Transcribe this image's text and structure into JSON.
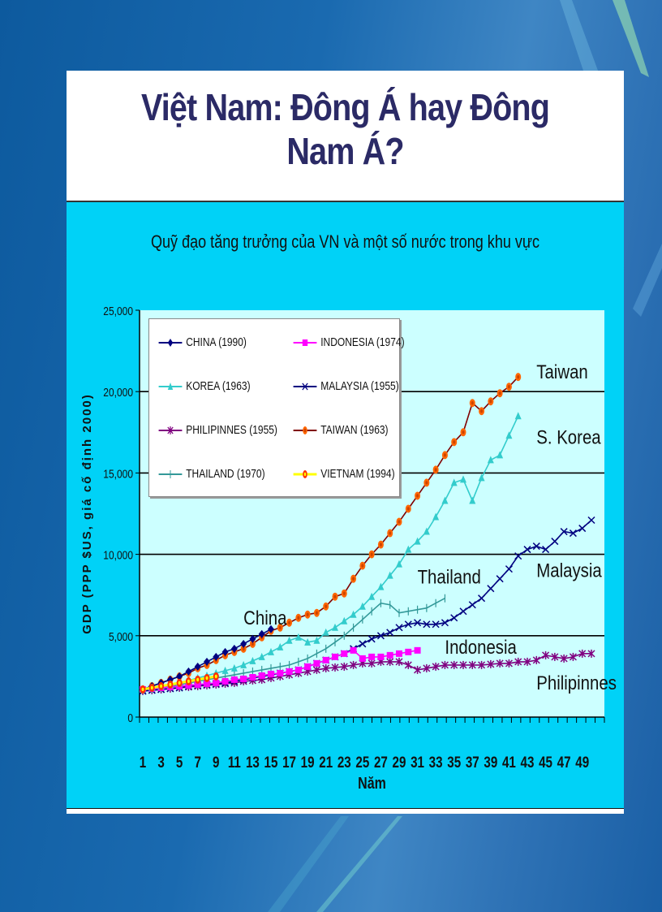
{
  "slide": {
    "title": "Việt Nam: Đông Á hay Đông Nam Á?",
    "subtitle": "Quỹ đạo tăng trưởng của VN và một số nước trong khu vực"
  },
  "chart_data": {
    "type": "line",
    "title": "Quỹ đạo tăng trưởng của VN và một số nước trong khu vực",
    "xlabel": "Năm",
    "ylabel": "GDP (PPP $US, giá cố định 2000)",
    "ylim": [
      0,
      25000
    ],
    "xlim": [
      1,
      50
    ],
    "yticks": [
      "0",
      "5,000",
      "10,000",
      "15,000",
      "20,000",
      "25,000"
    ],
    "xticks": [
      "1",
      "3",
      "5",
      "7",
      "9",
      "11",
      "13",
      "15",
      "17",
      "19",
      "21",
      "23",
      "25",
      "27",
      "29",
      "31",
      "33",
      "35",
      "37",
      "39",
      "41",
      "43",
      "45",
      "47",
      "49"
    ],
    "grid": "horizontal",
    "legend_position": "upper-left",
    "series": [
      {
        "name": "CHINA (1990)",
        "label": "China",
        "color": "#000080",
        "marker": "diamond",
        "values": [
          1700,
          1900,
          2100,
          2300,
          2500,
          2800,
          3100,
          3400,
          3700,
          4000,
          4200,
          4500,
          4800,
          5100,
          5400
        ]
      },
      {
        "name": "INDONESIA (1974)",
        "label": "Indonesia",
        "color": "#ff00ff",
        "marker": "square",
        "values": [
          1700,
          1750,
          1800,
          1850,
          1900,
          1950,
          2000,
          2050,
          2100,
          2200,
          2300,
          2350,
          2450,
          2550,
          2650,
          2700,
          2800,
          2900,
          3100,
          3300,
          3500,
          3700,
          3900,
          4100,
          3600,
          3700,
          3700,
          3800,
          3900,
          4000,
          4100
        ]
      },
      {
        "name": "KOREA (1963)",
        "label": "S. Korea",
        "color": "#33cccc",
        "marker": "triangle",
        "values": [
          1700,
          1800,
          1900,
          2000,
          2100,
          2250,
          2400,
          2550,
          2700,
          2850,
          3000,
          3200,
          3450,
          3700,
          4000,
          4300,
          4700,
          4900,
          4600,
          4700,
          5200,
          5500,
          5900,
          6300,
          6800,
          7400,
          8000,
          8700,
          9400,
          10300,
          10800,
          11400,
          12300,
          13300,
          14400,
          14600,
          13300,
          14700,
          15800,
          16100,
          17300,
          18500
        ]
      },
      {
        "name": "MALAYSIA (1955)",
        "label": "Malaysia",
        "color": "#000080",
        "marker": "x",
        "values": [
          1600,
          1650,
          1700,
          1750,
          1800,
          1900,
          1950,
          2000,
          2050,
          2100,
          2200,
          2300,
          2400,
          2500,
          2600,
          2700,
          2800,
          2900,
          3100,
          3300,
          3500,
          3700,
          3900,
          4200,
          4500,
          4800,
          5000,
          5200,
          5500,
          5700,
          5800,
          5700,
          5700,
          5800,
          6100,
          6500,
          6900,
          7300,
          7900,
          8500,
          9100,
          9900,
          10300,
          10500,
          10300,
          10800,
          11400,
          11300,
          11600,
          12100
        ]
      },
      {
        "name": "PHILIPINNES (1955)",
        "label": "Philipinnes",
        "color": "#800080",
        "marker": "star",
        "values": [
          1600,
          1650,
          1700,
          1750,
          1800,
          1850,
          1900,
          1950,
          2000,
          2050,
          2100,
          2200,
          2250,
          2300,
          2400,
          2500,
          2600,
          2700,
          2800,
          2900,
          3000,
          3050,
          3100,
          3200,
          3300,
          3300,
          3400,
          3400,
          3400,
          3200,
          2900,
          3000,
          3100,
          3200,
          3200,
          3200,
          3200,
          3200,
          3250,
          3300,
          3300,
          3400,
          3400,
          3500,
          3800,
          3700,
          3600,
          3700,
          3900,
          3900
        ]
      },
      {
        "name": "TAIWAN (1963)",
        "label": "Taiwan",
        "color": "#800000",
        "marker_color": "#ff6600",
        "marker": "circle",
        "values": [
          1700,
          1900,
          2100,
          2300,
          2500,
          2700,
          3000,
          3200,
          3500,
          3800,
          4000,
          4200,
          4500,
          4900,
          5300,
          5500,
          5800,
          6100,
          6300,
          6400,
          6800,
          7400,
          7600,
          8500,
          9300,
          10000,
          10600,
          11300,
          12000,
          12800,
          13600,
          14400,
          15200,
          16100,
          16900,
          17500,
          19300,
          18800,
          19400,
          19900,
          20300,
          20900
        ]
      },
      {
        "name": "THAILAND  (1970)",
        "label": "Thailand",
        "color": "#339999",
        "marker": "plus",
        "values": [
          1700,
          1750,
          1800,
          1900,
          2000,
          2100,
          2200,
          2300,
          2400,
          2500,
          2600,
          2700,
          2800,
          2900,
          3000,
          3100,
          3200,
          3400,
          3600,
          3900,
          4200,
          4600,
          5000,
          5500,
          6000,
          6500,
          7000,
          6900,
          6400,
          6500,
          6600,
          6700,
          7000,
          7300
        ]
      },
      {
        "name": "VIETNAM (1994)",
        "label": "",
        "color": "#ffff00",
        "marker_color": "#ff3300",
        "marker": "circle",
        "values": [
          1700,
          1800,
          1900,
          2000,
          2100,
          2200,
          2300,
          2400,
          2500
        ]
      }
    ],
    "annotations": [
      {
        "text": "Taiwan",
        "x": 44,
        "y": 20800
      },
      {
        "text": "S. Korea",
        "x": 44,
        "y": 16800
      },
      {
        "text": "Malaysia",
        "x": 44,
        "y": 8600
      },
      {
        "text": "Thailand",
        "x": 31,
        "y": 8200
      },
      {
        "text": "China",
        "x": 12,
        "y": 5700
      },
      {
        "text": "Indonesia",
        "x": 34,
        "y": 3900
      },
      {
        "text": "Philipinnes",
        "x": 44,
        "y": 1700
      }
    ]
  }
}
